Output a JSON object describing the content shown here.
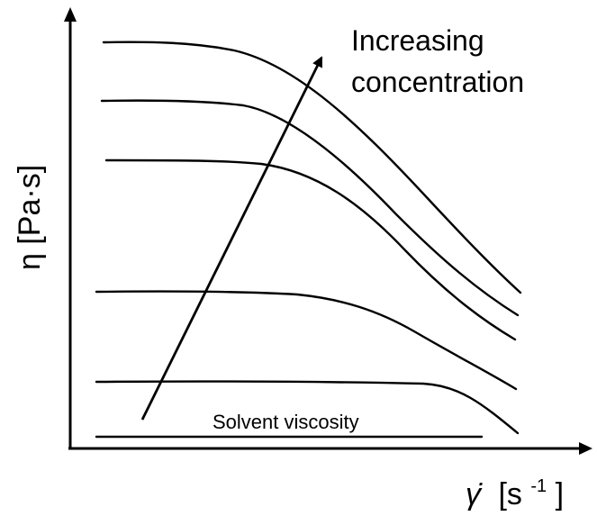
{
  "axes": {
    "y_label": "η [Pa·s]",
    "x_label_symbol": "γ̇",
    "x_label_unit": "[s",
    "x_label_exp": "-1",
    "x_label_close": "]"
  },
  "annotation": {
    "line1": "Increasing",
    "line2": "concentration"
  },
  "solvent_label": "Solvent viscosity",
  "colors": {
    "ink": "#000000",
    "background": "#ffffff"
  }
}
